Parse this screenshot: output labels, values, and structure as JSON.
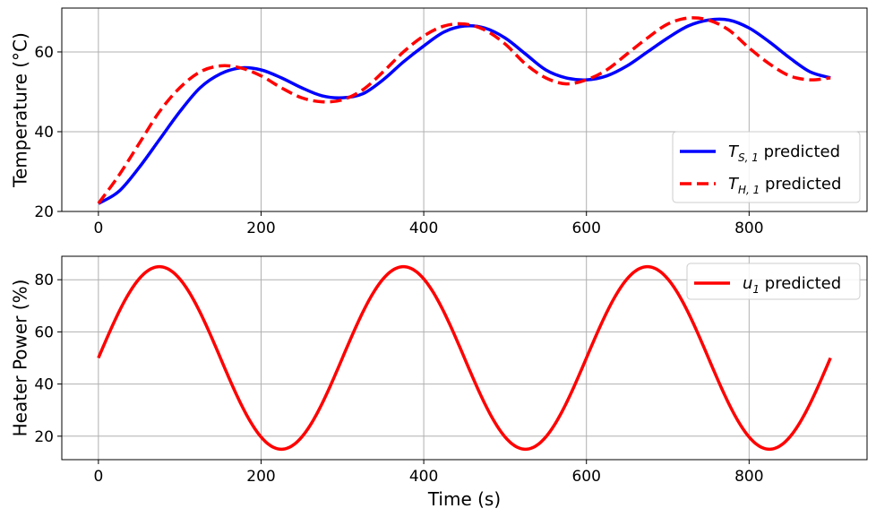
{
  "colors": {
    "series_s": "#0000ff",
    "series_h": "#ff0000",
    "series_u": "#ff0000",
    "grid": "#b0b0b0",
    "axis": "#000000"
  },
  "chart_data": [
    {
      "type": "line",
      "grid": true,
      "ylabel": "Temperature (°C)",
      "xlabel": "",
      "xlim": [
        -45,
        945
      ],
      "ylim": [
        20,
        71
      ],
      "x_ticks": [
        0,
        200,
        400,
        600,
        800
      ],
      "y_ticks": [
        20,
        40,
        60
      ],
      "legend_placement": "bottom-right",
      "series": [
        {
          "name": "T_{S,1} predicted",
          "legend_main": "T",
          "legend_sub": "S, 1",
          "legend_rest": " predicted",
          "style": "solid",
          "color": "#0000ff",
          "x": [
            0,
            25,
            50,
            75,
            100,
            125,
            150,
            175,
            200,
            225,
            250,
            275,
            300,
            325,
            350,
            375,
            400,
            425,
            450,
            475,
            500,
            525,
            550,
            575,
            600,
            625,
            650,
            675,
            700,
            725,
            750,
            775,
            800,
            825,
            850,
            875,
            900
          ],
          "y": [
            22,
            25,
            31,
            38,
            45,
            51,
            54.5,
            56,
            55.5,
            53.5,
            51,
            49,
            48.5,
            49.5,
            53,
            57.5,
            61.5,
            65,
            66.5,
            66,
            63.5,
            59.5,
            55.5,
            53.5,
            53,
            54,
            56.5,
            60,
            63.5,
            66.5,
            68,
            68,
            66,
            62.5,
            58.5,
            55,
            53.5
          ]
        },
        {
          "name": "T_{H,1} predicted",
          "legend_main": "T",
          "legend_sub": "H, 1",
          "legend_rest": " predicted",
          "style": "dashed",
          "color": "#ff0000",
          "x": [
            0,
            25,
            50,
            75,
            100,
            125,
            150,
            175,
            200,
            225,
            250,
            275,
            300,
            325,
            350,
            375,
            400,
            425,
            450,
            475,
            500,
            525,
            550,
            575,
            600,
            625,
            650,
            675,
            700,
            725,
            750,
            775,
            800,
            825,
            850,
            875,
            900
          ],
          "y": [
            22,
            29,
            37,
            45,
            51,
            55,
            56.5,
            56,
            54,
            51,
            48.5,
            47.5,
            48,
            50.5,
            55,
            60,
            64,
            66.5,
            67,
            65.5,
            62,
            57,
            53.5,
            52,
            53,
            55.5,
            59.5,
            63.5,
            67,
            68.5,
            68,
            65.5,
            61,
            57,
            54,
            53,
            53.5
          ]
        }
      ]
    },
    {
      "type": "line",
      "grid": true,
      "ylabel": "Heater Power (%)",
      "xlabel": "Time (s)",
      "xlim": [
        -45,
        945
      ],
      "ylim": [
        11,
        89
      ],
      "x_ticks": [
        0,
        200,
        400,
        600,
        800
      ],
      "y_ticks": [
        20,
        40,
        60,
        80
      ],
      "legend_placement": "top-right",
      "series": [
        {
          "name": "u_1 predicted",
          "legend_main": "u",
          "legend_sub": "1",
          "legend_rest": " predicted",
          "style": "solid",
          "color": "#ff0000",
          "function": "50 + 35*sin(2*pi*t/300)",
          "x_range": [
            0,
            900
          ],
          "amplitude": 35,
          "offset": 50,
          "period": 300
        }
      ]
    }
  ]
}
